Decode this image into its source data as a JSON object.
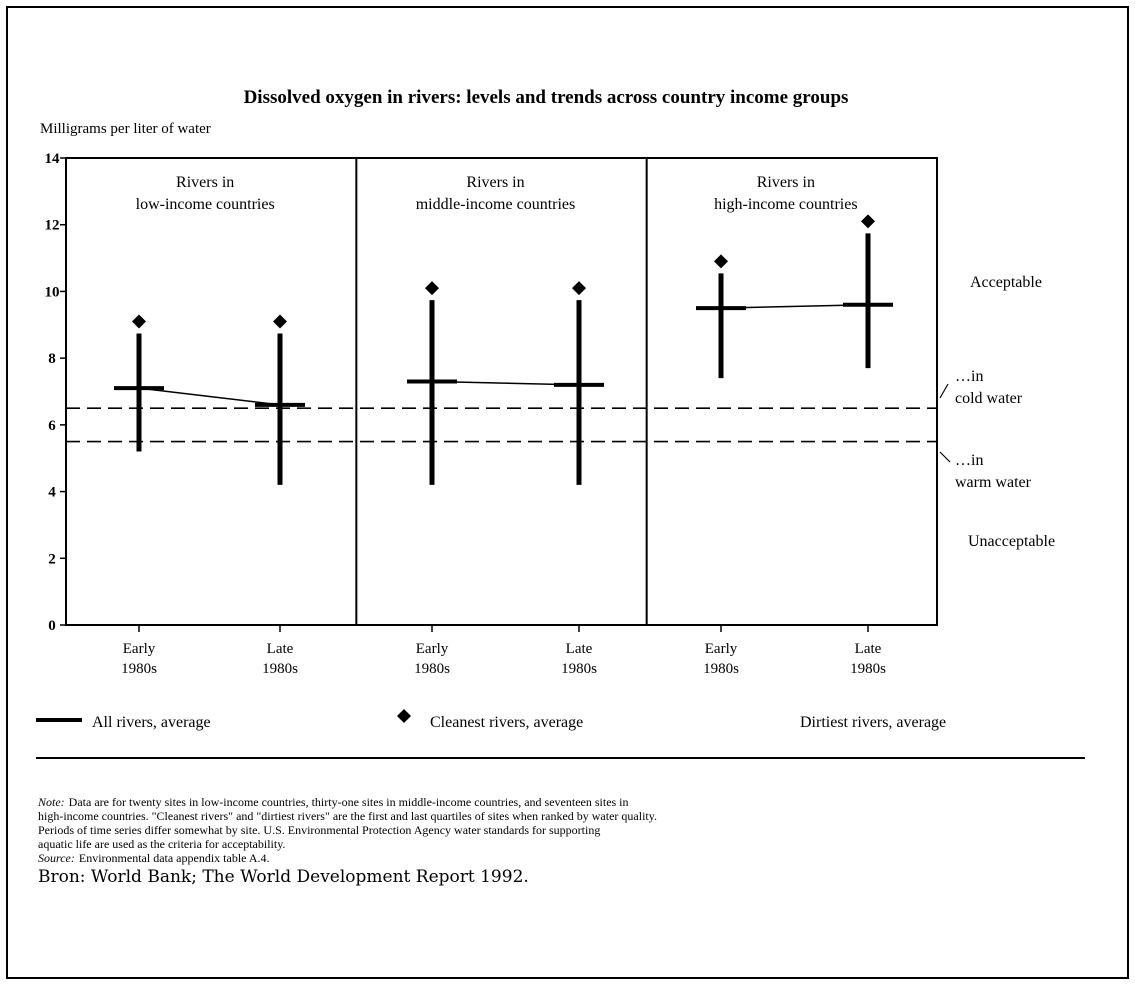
{
  "chart_data": {
    "type": "range",
    "title": "Dissolved oxygen in rivers: levels and trends across country income groups",
    "y_label": "Milligrams per liter of water",
    "ylim": [
      0,
      14
    ],
    "yticks": [
      0,
      2,
      4,
      6,
      8,
      10,
      12,
      14
    ],
    "panels": [
      {
        "title": [
          "Rivers in",
          "low-income countries"
        ]
      },
      {
        "title": [
          "Rivers in",
          "middle-income countries"
        ]
      },
      {
        "title": [
          "Rivers in",
          "high-income countries"
        ]
      }
    ],
    "categories": [
      [
        "Early",
        "1980s"
      ],
      [
        "Late",
        "1980s"
      ],
      [
        "Early",
        "1980s"
      ],
      [
        "Late",
        "1980s"
      ],
      [
        "Early",
        "1980s"
      ],
      [
        "Late",
        "1980s"
      ]
    ],
    "series": [
      {
        "name": "All rivers, average",
        "color": "#000000",
        "values": [
          7.1,
          6.6,
          7.3,
          7.2,
          9.5,
          9.6
        ]
      },
      {
        "name": "Cleanest rivers, average",
        "color": "#000000",
        "values": [
          9.1,
          9.1,
          10.1,
          10.1,
          10.9,
          12.1
        ]
      },
      {
        "name": "Dirtiest rivers, average",
        "color": "#000000",
        "values": [
          5.2,
          4.2,
          4.2,
          4.2,
          7.4,
          7.7
        ]
      }
    ],
    "reference_lines": [
      {
        "value": 6.5,
        "label": [
          "…in",
          "cold water"
        ]
      },
      {
        "value": 5.5,
        "label": [
          "…in",
          "warm water"
        ]
      }
    ],
    "annotations": [
      "Acceptable",
      "Unacceptable"
    ],
    "note_lead": "Note:",
    "note_lines": [
      "Data are for twenty sites in low-income countries, thirty-one sites in middle-income countries, and seventeen sites in",
      "high-income countries. \"Cleanest rivers\" and \"dirtiest rivers\" are the first and last quartiles of sites when ranked by water quality.",
      "Periods of time series differ somewhat by site. U.S. Environmental Protection Agency water standards for supporting",
      "aquatic life are used as the criteria for acceptability."
    ],
    "source_lead": "Source:",
    "source_text": "Environmental data appendix table A.4.",
    "credit": "Bron: World Bank; The World Development Report 1992."
  }
}
